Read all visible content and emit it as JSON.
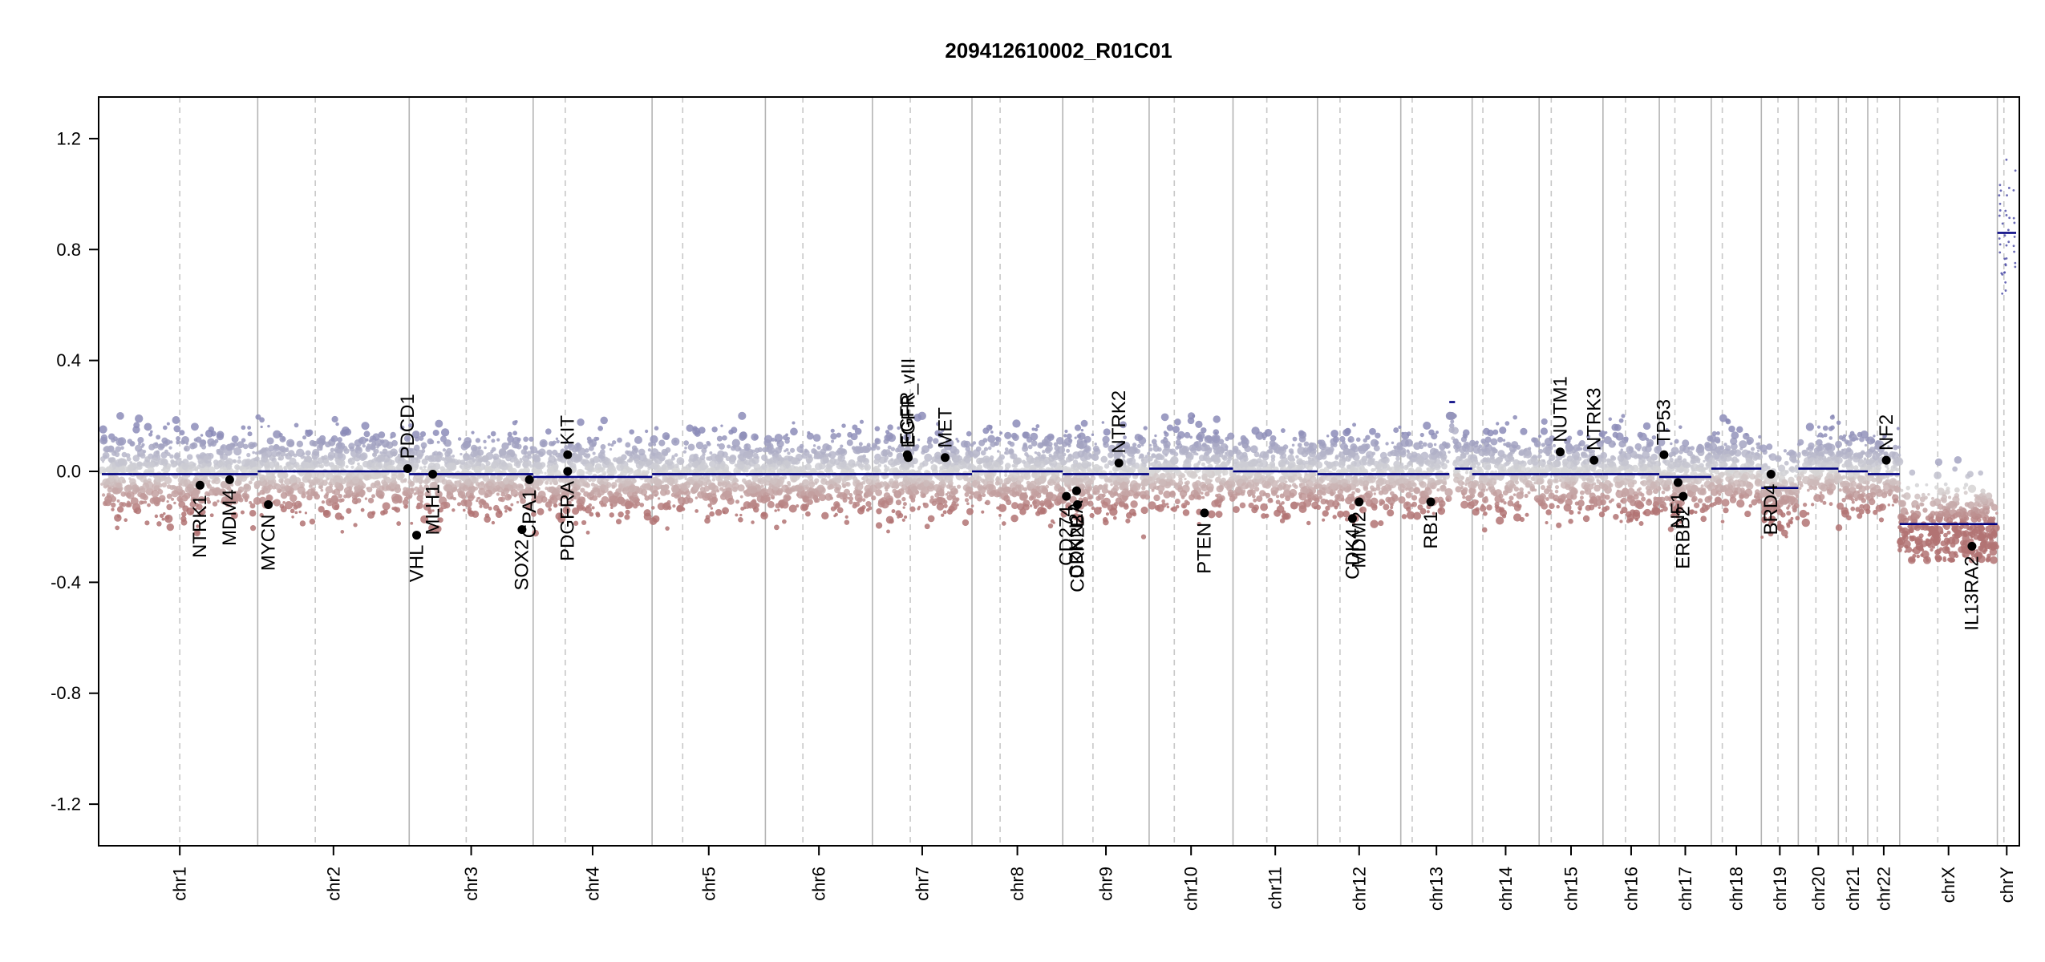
{
  "chart_data": {
    "type": "scatter",
    "title": "209412610002_R01C01",
    "xlabel": "",
    "ylabel": "",
    "ylim": [
      -1.35,
      1.35
    ],
    "y_ticks": [
      "-1.2",
      "-0.8",
      "-0.4",
      "0.0",
      "0.4",
      "0.8",
      "1.2"
    ],
    "y_tick_values": [
      -1.2,
      -0.8,
      -0.4,
      0.0,
      0.4,
      0.8,
      1.2
    ],
    "grid": false,
    "chromosomes": [
      {
        "name": "chr1",
        "length": 249,
        "centromere": 0.5,
        "segments": [
          {
            "start": 0.0,
            "end": 0.2,
            "value": -0.01
          },
          {
            "start": 0.2,
            "end": 1.0,
            "value": -0.01
          }
        ]
      },
      {
        "name": "chr2",
        "length": 242,
        "centromere": 0.38,
        "segments": [
          {
            "start": 0.0,
            "end": 1.0,
            "value": 0.0
          }
        ]
      },
      {
        "name": "chr3",
        "length": 198,
        "centromere": 0.46,
        "segments": [
          {
            "start": 0.0,
            "end": 1.0,
            "value": -0.01
          }
        ]
      },
      {
        "name": "chr4",
        "length": 190,
        "centromere": 0.27,
        "segments": [
          {
            "start": 0.0,
            "end": 1.0,
            "value": -0.02
          }
        ]
      },
      {
        "name": "chr5",
        "length": 181,
        "centromere": 0.27,
        "segments": [
          {
            "start": 0.0,
            "end": 1.0,
            "value": -0.01
          }
        ]
      },
      {
        "name": "chr6",
        "length": 171,
        "centromere": 0.35,
        "segments": [
          {
            "start": 0.0,
            "end": 1.0,
            "value": -0.01
          }
        ]
      },
      {
        "name": "chr7",
        "length": 159,
        "centromere": 0.38,
        "segments": [
          {
            "start": 0.0,
            "end": 1.0,
            "value": -0.01
          }
        ]
      },
      {
        "name": "chr8",
        "length": 145,
        "centromere": 0.31,
        "segments": [
          {
            "start": 0.0,
            "end": 1.0,
            "value": 0.0
          }
        ]
      },
      {
        "name": "chr9",
        "length": 138,
        "centromere": 0.35,
        "segments": [
          {
            "start": 0.0,
            "end": 1.0,
            "value": -0.01
          }
        ]
      },
      {
        "name": "chr10",
        "length": 134,
        "centromere": 0.3,
        "segments": [
          {
            "start": 0.0,
            "end": 1.0,
            "value": 0.01
          }
        ]
      },
      {
        "name": "chr11",
        "length": 135,
        "centromere": 0.4,
        "segments": [
          {
            "start": 0.0,
            "end": 1.0,
            "value": 0.0
          }
        ]
      },
      {
        "name": "chr12",
        "length": 133,
        "centromere": 0.27,
        "segments": [
          {
            "start": 0.0,
            "end": 1.0,
            "value": -0.01
          }
        ]
      },
      {
        "name": "chr13",
        "length": 114,
        "centromere": 0.16,
        "segments": [
          {
            "start": 0.0,
            "end": 0.68,
            "value": -0.01
          },
          {
            "start": 0.68,
            "end": 0.76,
            "value": 0.25
          },
          {
            "start": 0.76,
            "end": 1.0,
            "value": 0.01
          }
        ]
      },
      {
        "name": "chr14",
        "length": 107,
        "centromere": 0.16,
        "segments": [
          {
            "start": 0.0,
            "end": 1.0,
            "value": -0.01
          }
        ]
      },
      {
        "name": "chr15",
        "length": 102,
        "centromere": 0.19,
        "segments": [
          {
            "start": 0.0,
            "end": 1.0,
            "value": -0.01
          }
        ]
      },
      {
        "name": "chr16",
        "length": 90,
        "centromere": 0.4,
        "segments": [
          {
            "start": 0.0,
            "end": 1.0,
            "value": -0.01
          }
        ]
      },
      {
        "name": "chr17",
        "length": 83,
        "centromere": 0.3,
        "segments": [
          {
            "start": 0.0,
            "end": 1.0,
            "value": -0.02
          }
        ]
      },
      {
        "name": "chr18",
        "length": 80,
        "centromere": 0.22,
        "segments": [
          {
            "start": 0.0,
            "end": 1.0,
            "value": 0.01
          }
        ]
      },
      {
        "name": "chr19",
        "length": 59,
        "centromere": 0.45,
        "segments": [
          {
            "start": 0.0,
            "end": 1.0,
            "value": -0.06
          }
        ]
      },
      {
        "name": "chr20",
        "length": 64,
        "centromere": 0.44,
        "segments": [
          {
            "start": 0.0,
            "end": 1.0,
            "value": 0.01
          }
        ]
      },
      {
        "name": "chr21",
        "length": 47,
        "centromere": 0.27,
        "segments": [
          {
            "start": 0.0,
            "end": 1.0,
            "value": 0.0
          }
        ]
      },
      {
        "name": "chr22",
        "length": 51,
        "centromere": 0.3,
        "segments": [
          {
            "start": 0.0,
            "end": 1.0,
            "value": -0.01
          }
        ]
      },
      {
        "name": "chrX",
        "length": 156,
        "centromere": 0.39,
        "segments": [
          {
            "start": 0.0,
            "end": 1.0,
            "value": -0.19
          }
        ]
      },
      {
        "name": "chrY",
        "length": 30,
        "centromere": 0.35,
        "segments": [
          {
            "start": 0.0,
            "end": 1.0,
            "value": 0.86
          }
        ]
      }
    ],
    "genes": [
      {
        "name": "NTRK1",
        "chr": "chr1",
        "pos": 0.63,
        "value": -0.05,
        "label_side": "below"
      },
      {
        "name": "MDM4",
        "chr": "chr1",
        "pos": 0.82,
        "value": -0.03,
        "label_side": "below"
      },
      {
        "name": "MYCN",
        "chr": "chr2",
        "pos": 0.07,
        "value": -0.12,
        "label_side": "below"
      },
      {
        "name": "PDCD1",
        "chr": "chr2",
        "pos": 0.99,
        "value": 0.01,
        "label_side": "above"
      },
      {
        "name": "VHL",
        "chr": "chr3",
        "pos": 0.06,
        "value": -0.23,
        "label_side": "below"
      },
      {
        "name": "MLH1",
        "chr": "chr3",
        "pos": 0.19,
        "value": -0.01,
        "label_side": "below"
      },
      {
        "name": "SOX2",
        "chr": "chr3",
        "pos": 0.91,
        "value": -0.21,
        "label_side": "below"
      },
      {
        "name": "CPA1",
        "chr": "chr3",
        "pos": 0.97,
        "value": -0.03,
        "label_side": "below"
      },
      {
        "name": "KIT",
        "chr": "chr4",
        "pos": 0.29,
        "value": 0.06,
        "label_side": "above"
      },
      {
        "name": "PDGFRA",
        "chr": "chr4",
        "pos": 0.29,
        "value": 0.0,
        "label_side": "below"
      },
      {
        "name": "EGFR",
        "chr": "chr7",
        "pos": 0.35,
        "value": 0.06,
        "label_side": "above"
      },
      {
        "name": "EGFR_vIII",
        "chr": "chr7",
        "pos": 0.36,
        "value": 0.05,
        "label_side": "above"
      },
      {
        "name": "MET",
        "chr": "chr7",
        "pos": 0.73,
        "value": 0.05,
        "label_side": "above"
      },
      {
        "name": "CD274",
        "chr": "chr8",
        "pos": 1.04,
        "value": -0.09,
        "label_side": "below"
      },
      {
        "name": "CDKN2A",
        "chr": "chr9",
        "pos": 0.16,
        "value": -0.07,
        "label_side": "below"
      },
      {
        "name": "CDKN2B",
        "chr": "chr9",
        "pos": 0.17,
        "value": -0.12,
        "label_side": "below"
      },
      {
        "name": "NTRK2",
        "chr": "chr9",
        "pos": 0.65,
        "value": 0.03,
        "label_side": "above"
      },
      {
        "name": "PTEN",
        "chr": "chr10",
        "pos": 0.66,
        "value": -0.15,
        "label_side": "below"
      },
      {
        "name": "CDK4",
        "chr": "chr12",
        "pos": 0.42,
        "value": -0.17,
        "label_side": "below"
      },
      {
        "name": "MDM2",
        "chr": "chr12",
        "pos": 0.5,
        "value": -0.11,
        "label_side": "below"
      },
      {
        "name": "RB1",
        "chr": "chr13",
        "pos": 0.42,
        "value": -0.11,
        "label_side": "below"
      },
      {
        "name": "NUTM1",
        "chr": "chr15",
        "pos": 0.33,
        "value": 0.07,
        "label_side": "above"
      },
      {
        "name": "NTRK3",
        "chr": "chr15",
        "pos": 0.86,
        "value": 0.04,
        "label_side": "above"
      },
      {
        "name": "TP53",
        "chr": "chr17",
        "pos": 0.09,
        "value": 0.06,
        "label_side": "above"
      },
      {
        "name": "NF1",
        "chr": "chr17",
        "pos": 0.36,
        "value": -0.04,
        "label_side": "below"
      },
      {
        "name": "ERBB2",
        "chr": "chr17",
        "pos": 0.46,
        "value": -0.09,
        "label_side": "below"
      },
      {
        "name": "BRD4",
        "chr": "chr19",
        "pos": 0.26,
        "value": -0.01,
        "label_side": "below"
      },
      {
        "name": "NF2",
        "chr": "chr22",
        "pos": 0.58,
        "value": 0.04,
        "label_side": "above"
      },
      {
        "name": "IL13RA2",
        "chr": "chrX",
        "pos": 0.74,
        "value": -0.27,
        "label_side": "below"
      }
    ],
    "colors": {
      "gain": "#8c8cb8",
      "loss": "#b27373",
      "neutral": "#d8d8d8",
      "segment": "#000080",
      "gene_point": "#000000",
      "chr_boundary": "#b4b4b4",
      "centromere": "#c8c8c8"
    }
  }
}
